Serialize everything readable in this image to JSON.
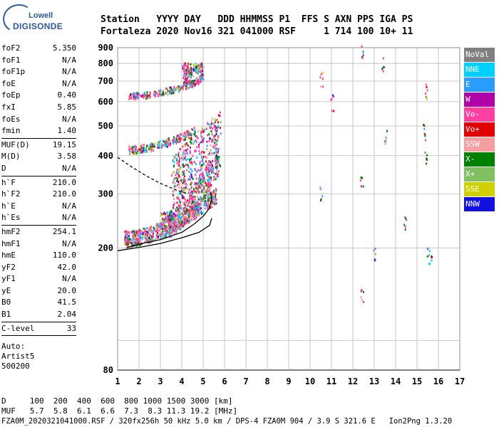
{
  "header": {
    "logo_top": "Lowell",
    "logo_bottom": "DIGISONDE",
    "row1": "Station   YYYY DAY   DDD HHMMSS P1  FFS S AXN PPS IGA PS",
    "row2": "Fortaleza 2020 Nov16 321 041000 RSF     1 714 100 10+ 11"
  },
  "params_groups": [
    [
      [
        "foF2",
        "5.350"
      ],
      [
        "foF1",
        "N/A"
      ],
      [
        "foF1p",
        "N/A"
      ],
      [
        "foE",
        "N/A"
      ],
      [
        "foEp",
        "0.40"
      ],
      [
        "fxI",
        "5.85"
      ],
      [
        "foEs",
        "N/A"
      ],
      [
        "fmin",
        "1.40"
      ]
    ],
    [
      [
        "MUF(D)",
        "19.15"
      ],
      [
        "M(D)",
        "3.58"
      ],
      [
        "D",
        "N/A"
      ]
    ],
    [
      [
        "h`F",
        "210.0"
      ],
      [
        "h`F2",
        "210.0"
      ],
      [
        "h`E",
        "N/A"
      ],
      [
        "h`Es",
        "N/A"
      ]
    ],
    [
      [
        "hmF2",
        "254.1"
      ],
      [
        "hmF1",
        "N/A"
      ],
      [
        "hmE",
        "110.0"
      ],
      [
        "yF2",
        "42.0"
      ],
      [
        "yF1",
        "N/A"
      ],
      [
        "yE",
        "20.0"
      ],
      [
        "B0",
        "41.5"
      ],
      [
        "B1",
        "2.04"
      ]
    ],
    [
      [
        "C-level",
        "33"
      ]
    ]
  ],
  "auto": {
    "l1": "Auto:",
    "l2": "Artist5",
    "l3": "500200"
  },
  "bottom": {
    "d_row": "D     100  200  400  600  800 1000 1500 3000 [km]",
    "muf_row": "MUF   5.7  5.8  6.1  6.6  7.3  8.3 11.3 19.2 [MHz]",
    "footer": "FZA0M_2020321041000.RSF / 320fx256h 50 kHz 5.0 km / DPS-4 FZA0M 904 / 3.9 S 321.6 E   Ion2Png 1.3.20"
  },
  "legend": [
    {
      "label": "NoVal",
      "color": "#808080"
    },
    {
      "label": "NNE",
      "color": "#00d0ff"
    },
    {
      "label": "E",
      "color": "#2a9cff"
    },
    {
      "label": "W",
      "color": "#b000a8"
    },
    {
      "label": "Vo-",
      "color": "#ff40a0"
    },
    {
      "label": "Vo+",
      "color": "#e00000"
    },
    {
      "label": "SSW",
      "color": "#f5a0a0"
    },
    {
      "label": "X-",
      "color": "#008000"
    },
    {
      "label": "X+",
      "color": "#80c060"
    },
    {
      "label": "SSE",
      "color": "#d0d000"
    },
    {
      "label": "NNW",
      "color": "#1010e0"
    }
  ],
  "chart_data": {
    "type": "scatter",
    "xlim": [
      1,
      17
    ],
    "ylim": [
      80,
      900
    ],
    "y_scale": "log",
    "x_ticks": [
      "1",
      "2",
      "3",
      "4",
      "5",
      "6",
      "7",
      "8",
      "9",
      "10",
      "11",
      "12",
      "13",
      "14",
      "15",
      "16",
      "17"
    ],
    "y_ticks": [
      "900",
      "800",
      "700",
      "600",
      "500",
      "400",
      "300",
      "200",
      "80"
    ],
    "grid": true,
    "traces": [
      {
        "name": "profile",
        "points": [
          [
            1.4,
            200
          ],
          [
            2.0,
            206
          ],
          [
            3.0,
            213
          ],
          [
            4.0,
            225
          ],
          [
            4.6,
            240
          ],
          [
            5.0,
            254
          ],
          [
            5.3,
            270
          ],
          [
            5.4,
            290
          ],
          [
            5.35,
            305
          ]
        ]
      },
      {
        "name": "virtual",
        "points": [
          [
            1.0,
            395
          ],
          [
            1.6,
            370
          ],
          [
            2.3,
            345
          ],
          [
            3.0,
            325
          ],
          [
            3.7,
            310
          ],
          [
            4.3,
            300
          ]
        ]
      },
      {
        "name": "lower",
        "points": [
          [
            1.0,
            196
          ],
          [
            2.0,
            201
          ],
          [
            3.0,
            207
          ],
          [
            4.0,
            216
          ],
          [
            4.8,
            225
          ],
          [
            5.3,
            237
          ],
          [
            5.4,
            250
          ]
        ]
      }
    ],
    "legend_placement": "right"
  }
}
